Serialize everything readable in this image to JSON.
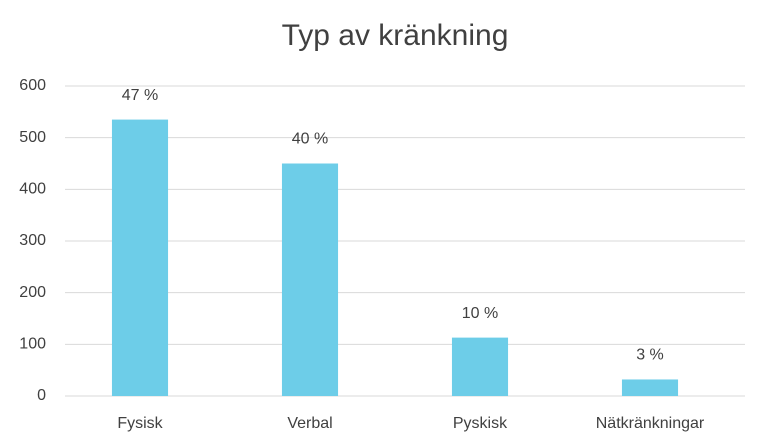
{
  "chart_data": {
    "type": "bar",
    "title": "Typ av kränkning",
    "categories": [
      "Fysisk",
      "Verbal",
      "Pyskisk",
      "Nätkränkningar"
    ],
    "values": [
      535,
      450,
      113,
      32
    ],
    "value_labels": [
      "47 %",
      "40 %",
      "10 %",
      "3 %"
    ],
    "color": "#6dcde8",
    "ylim": [
      0,
      600
    ],
    "yticks": [
      0,
      100,
      200,
      300,
      400,
      500,
      600
    ],
    "grid": true
  }
}
